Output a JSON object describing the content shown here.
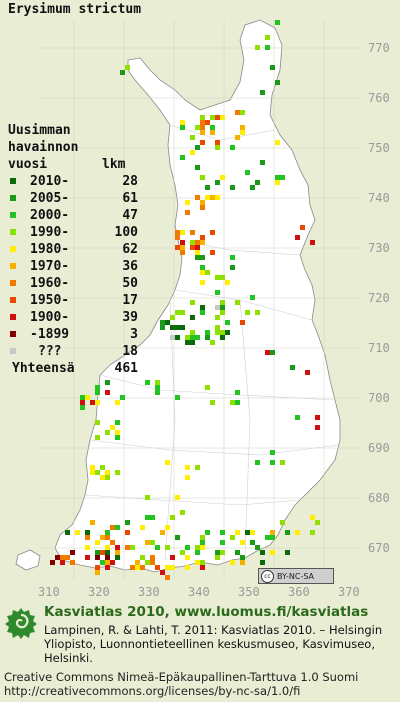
{
  "title": "Erysimum strictum",
  "legend": {
    "heading_1": "Uusimman",
    "heading_2": "havainnon",
    "heading_3": "vuosi",
    "heading_count": "lkm",
    "rows": [
      {
        "label": "2010-",
        "count": "28",
        "color": "#0a6b0a"
      },
      {
        "label": "2005-",
        "count": "61",
        "color": "#1a9a1a"
      },
      {
        "label": "2000-",
        "count": "47",
        "color": "#22c422"
      },
      {
        "label": "1990-",
        "count": "100",
        "color": "#8ee000"
      },
      {
        "label": "1980-",
        "count": "62",
        "color": "#ffee00"
      },
      {
        "label": "1970-",
        "count": "36",
        "color": "#f7b000"
      },
      {
        "label": "1960-",
        "count": "50",
        "color": "#f07a00"
      },
      {
        "label": "1950-",
        "count": "17",
        "color": "#e84a00"
      },
      {
        "label": "1900-",
        "count": "39",
        "color": "#d01010"
      },
      {
        "label": "-1899",
        "count": "3",
        "color": "#800000"
      },
      {
        "label": "???",
        "count": "18",
        "color": "#c8c8c8"
      }
    ],
    "total_label": "Yhteensä",
    "total_count": "461"
  },
  "grid_labels": {
    "north": [
      "770",
      "760",
      "750",
      "740",
      "730",
      "720",
      "710",
      "700",
      "690",
      "680",
      "670"
    ],
    "east": [
      "310",
      "320",
      "330",
      "340",
      "350",
      "360",
      "370"
    ]
  },
  "license_badge": "BY-NC-SA",
  "footer": {
    "line1": "Kasviatlas 2010, www.luomus.fi/kasviatlas",
    "citation": "Lampinen, R. & Lahti, T. 2011: Kasviatlas 2010. – Helsingin Yliopisto, Luonnontieteellinen keskusmuseo, Kasvimuseo, Helsinki.",
    "license_1": "Creative Commons Nimeä-Epäkaupallinen-Tarttuva 1.0 Suomi",
    "license_2": "http://creativecommons.org/licenses/by-nc-sa/1.0/fi"
  },
  "colors": {
    "land": "#ffffff",
    "background": "#e8edd4",
    "border": "#777777",
    "grid_text": "#9a9a9a",
    "footer_title": "#2b6a1a"
  }
}
